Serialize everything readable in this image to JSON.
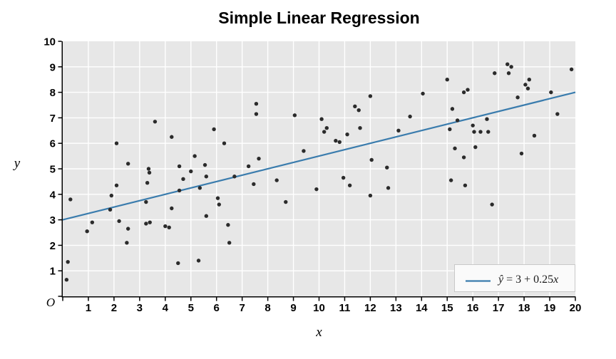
{
  "title": "Simple Linear Regression",
  "axes": {
    "x_label": "x",
    "y_label": "y",
    "origin_label": "O",
    "x_ticks": [
      1,
      2,
      3,
      4,
      5,
      6,
      7,
      8,
      9,
      10,
      11,
      12,
      13,
      14,
      15,
      16,
      17,
      18,
      19,
      20
    ],
    "y_ticks": [
      1,
      2,
      3,
      4,
      5,
      6,
      7,
      8,
      9,
      10
    ]
  },
  "legend": {
    "y_hat": "ŷ",
    "body": " = 3 + 0.25",
    "x_var": "x",
    "full_label": "ŷ = 3 + 0.25x"
  },
  "colors": {
    "plot_bg": "#e7e7e7",
    "grid": "#ffffff",
    "point": "#2b2b2b",
    "line": "#3a7cad",
    "axis": "#000000",
    "legend_bg": "#fafafa",
    "legend_border": "#c8c8c8"
  },
  "chart_data": {
    "type": "scatter",
    "title": "Simple Linear Regression",
    "xlabel": "x",
    "ylabel": "y",
    "xlim": [
      0,
      20
    ],
    "ylim": [
      0,
      10
    ],
    "x_tick_step": 1,
    "y_tick_step": 1,
    "grid": true,
    "legend_position": "lower right",
    "regression_line": {
      "label": "ŷ = 3 + 0.25x",
      "intercept": 3,
      "slope": 0.25,
      "x_start": 0,
      "x_end": 20
    },
    "points": [
      [
        0.15,
        0.65
      ],
      [
        0.2,
        1.35
      ],
      [
        0.3,
        3.8
      ],
      [
        0.95,
        2.55
      ],
      [
        1.15,
        2.9
      ],
      [
        1.85,
        3.4
      ],
      [
        1.9,
        3.95
      ],
      [
        2.1,
        4.35
      ],
      [
        2.1,
        6.0
      ],
      [
        2.2,
        2.95
      ],
      [
        2.5,
        2.1
      ],
      [
        2.55,
        2.65
      ],
      [
        2.55,
        5.2
      ],
      [
        3.25,
        2.85
      ],
      [
        3.25,
        3.7
      ],
      [
        3.3,
        4.45
      ],
      [
        3.35,
        5.0
      ],
      [
        3.38,
        4.85
      ],
      [
        3.4,
        2.9
      ],
      [
        3.6,
        6.85
      ],
      [
        4.0,
        2.75
      ],
      [
        4.15,
        2.7
      ],
      [
        4.25,
        3.45
      ],
      [
        4.25,
        6.25
      ],
      [
        4.5,
        1.3
      ],
      [
        4.55,
        4.15
      ],
      [
        4.55,
        5.1
      ],
      [
        4.7,
        4.6
      ],
      [
        5.0,
        4.9
      ],
      [
        5.15,
        5.5
      ],
      [
        5.3,
        1.4
      ],
      [
        5.35,
        4.25
      ],
      [
        5.55,
        5.15
      ],
      [
        5.6,
        3.15
      ],
      [
        5.6,
        4.7
      ],
      [
        5.9,
        6.55
      ],
      [
        6.05,
        3.85
      ],
      [
        6.1,
        3.6
      ],
      [
        6.3,
        6.0
      ],
      [
        6.45,
        2.8
      ],
      [
        6.5,
        2.1
      ],
      [
        6.7,
        4.7
      ],
      [
        7.25,
        5.1
      ],
      [
        7.45,
        4.4
      ],
      [
        7.55,
        7.15
      ],
      [
        7.55,
        7.55
      ],
      [
        7.65,
        5.4
      ],
      [
        8.35,
        4.55
      ],
      [
        8.7,
        3.7
      ],
      [
        9.05,
        7.1
      ],
      [
        9.4,
        5.7
      ],
      [
        9.9,
        4.2
      ],
      [
        10.1,
        6.95
      ],
      [
        10.2,
        6.45
      ],
      [
        10.3,
        6.6
      ],
      [
        10.65,
        6.1
      ],
      [
        10.8,
        6.05
      ],
      [
        10.95,
        4.65
      ],
      [
        11.1,
        6.35
      ],
      [
        11.2,
        4.35
      ],
      [
        11.4,
        7.45
      ],
      [
        11.55,
        7.3
      ],
      [
        11.6,
        6.6
      ],
      [
        12.0,
        3.95
      ],
      [
        12.0,
        7.85
      ],
      [
        12.05,
        5.35
      ],
      [
        12.65,
        5.05
      ],
      [
        12.7,
        4.25
      ],
      [
        13.1,
        6.5
      ],
      [
        13.55,
        7.05
      ],
      [
        14.05,
        7.95
      ],
      [
        15.0,
        8.5
      ],
      [
        15.1,
        6.55
      ],
      [
        15.15,
        4.55
      ],
      [
        15.2,
        7.35
      ],
      [
        15.3,
        5.8
      ],
      [
        15.4,
        6.9
      ],
      [
        15.65,
        5.45
      ],
      [
        15.65,
        8.0
      ],
      [
        15.7,
        4.35
      ],
      [
        15.8,
        8.1
      ],
      [
        16.0,
        6.7
      ],
      [
        16.05,
        6.45
      ],
      [
        16.1,
        5.85
      ],
      [
        16.3,
        6.45
      ],
      [
        16.55,
        6.95
      ],
      [
        16.6,
        6.45
      ],
      [
        16.75,
        3.6
      ],
      [
        16.85,
        8.75
      ],
      [
        17.35,
        9.1
      ],
      [
        17.4,
        8.75
      ],
      [
        17.5,
        9.0
      ],
      [
        17.75,
        7.8
      ],
      [
        17.9,
        5.6
      ],
      [
        18.05,
        8.3
      ],
      [
        18.15,
        8.15
      ],
      [
        18.2,
        8.5
      ],
      [
        18.4,
        6.3
      ],
      [
        19.05,
        8.0
      ],
      [
        19.3,
        7.15
      ],
      [
        19.85,
        8.9
      ]
    ]
  }
}
